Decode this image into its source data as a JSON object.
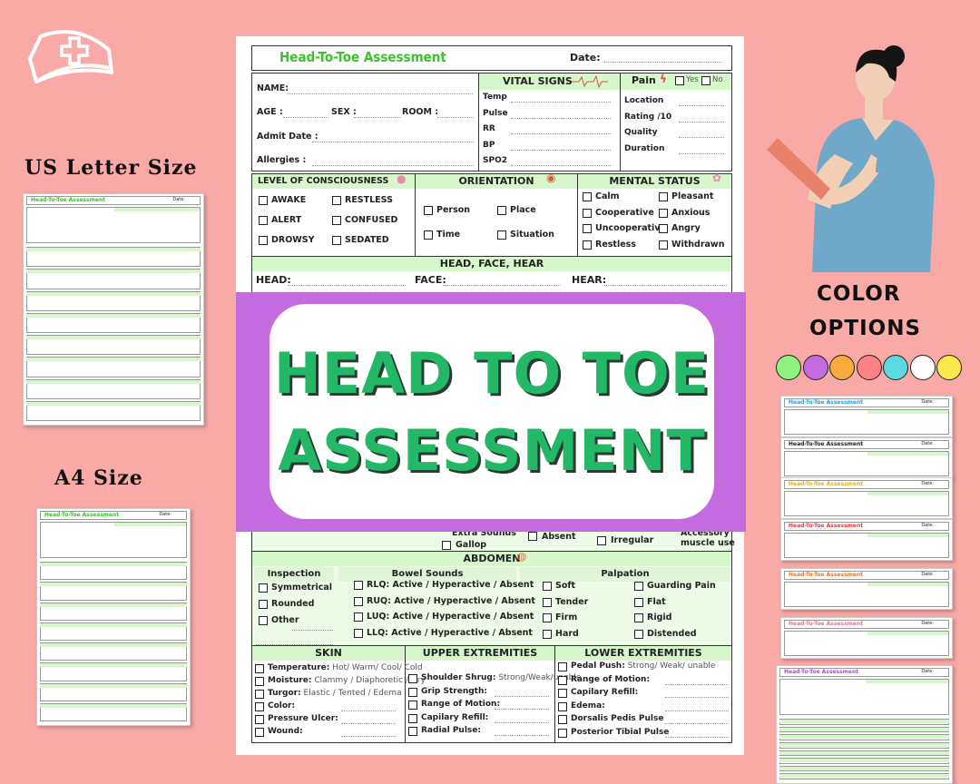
{
  "side": {
    "us_letter": "US Letter Size",
    "a4": "A4 Size",
    "color_options_1": "COLOR",
    "color_options_2": "OPTIONS"
  },
  "colors": [
    "#8ef27e",
    "#c46be0",
    "#f9ac3c",
    "#fb8383",
    "#5bd9e0",
    "#ffffff",
    "#fbe74b"
  ],
  "banner": {
    "line1": "HEAD TO TOE",
    "line2": "ASSESSMENT",
    "color": "#23b866",
    "bg": "#c46be0"
  },
  "form": {
    "title": "Head-To-Toe Assessment",
    "date": "Date:",
    "patient": {
      "name": "NAME:",
      "age": "AGE :",
      "sex": "SEX :",
      "room": "ROOM :",
      "admit": "Admit Date :",
      "allergies": "Allergies :"
    },
    "vitals": {
      "title": "VITAL SIGNS",
      "items": [
        "Temp",
        "Pulse",
        "RR",
        "BP",
        "SPO2"
      ]
    },
    "pain": {
      "title": "Pain",
      "yes": "Yes",
      "no": "No",
      "items": [
        "Location",
        "Rating /10",
        "Quality",
        "Duration"
      ]
    },
    "loc": {
      "title": "LEVEL OF CONSCIOUSNESS",
      "items": [
        "AWAKE",
        "RESTLESS",
        "ALERT",
        "CONFUSED",
        "DROWSY",
        "SEDATED"
      ]
    },
    "orientation": {
      "title": "ORIENTATION",
      "items": [
        "Person",
        "Place",
        "Time",
        "Situation"
      ]
    },
    "mental": {
      "title": "MENTAL STATUS",
      "items": [
        "Calm",
        "Pleasant",
        "Cooperative",
        "Anxious",
        "Uncooperative",
        "Angry",
        "Restless",
        "Withdrawn"
      ]
    },
    "hfh": {
      "title": "HEAD, FACE, HEAR",
      "head": "HEAD:",
      "face": "FACE:",
      "hear": "HEAR:"
    },
    "partial": {
      "extra": "Extra Sounds",
      "gallop": "Gallop",
      "absent": "Absent",
      "irregular": "Irregular",
      "accessory": "Accessory",
      "muscle": "muscle use"
    },
    "abdomen": {
      "title": "ABDOMEN",
      "inspection": {
        "title": "Inspection",
        "items": [
          "Symmetrical",
          "Rounded",
          "Other"
        ]
      },
      "bowel": {
        "title": "Bowel Sounds",
        "items": [
          "RLQ: Active / Hyperactive / Absent",
          "RUQ: Active / Hyperactive / Absent",
          "LUQ: Active / Hyperactive / Absent",
          "LLQ: Active / Hyperactive / Absent"
        ]
      },
      "palpation": {
        "title": "Palpation",
        "items": [
          "Soft",
          "Guarding Pain",
          "Tender",
          "Flat",
          "Firm",
          "Rigid",
          "Hard",
          "Distended"
        ]
      }
    },
    "skin": {
      "title": "SKIN",
      "items": [
        {
          "label": "Temperature:",
          "opts": "Hot/ Warm/ Cool/ Cold"
        },
        {
          "label": "Moisture:",
          "opts": "Clammy / Diaphoretic / Dry"
        },
        {
          "label": "Turgor:",
          "opts": "Elastic / Tented / Edema"
        },
        {
          "label": "Color:",
          "opts": ""
        },
        {
          "label": "Pressure Ulcer:",
          "opts": ""
        },
        {
          "label": "Wound:",
          "opts": ""
        }
      ]
    },
    "upper": {
      "title": "UPPER EXTREMITIES",
      "items": [
        {
          "label": "Shoulder Shrug:",
          "opts": "Strong/Weak/unable"
        },
        {
          "label": "Grip Strength:",
          "opts": ""
        },
        {
          "label": "Range of Motion:",
          "opts": ""
        },
        {
          "label": "Capilary Refill:",
          "opts": ""
        },
        {
          "label": "Radial Pulse:",
          "opts": ""
        }
      ]
    },
    "lower": {
      "title": "LOWER EXTREMITIES",
      "items": [
        {
          "label": "Pedal Push:",
          "opts": "Strong/ Weak/ unable"
        },
        {
          "label": "Range of Motion:",
          "opts": ""
        },
        {
          "label": "Capilary Refill:",
          "opts": ""
        },
        {
          "label": "Edema:",
          "opts": ""
        },
        {
          "label": "Dorsalis Pedis Pulse",
          "opts": ""
        },
        {
          "label": "Posterior Tibial Pulse",
          "opts": ""
        }
      ]
    }
  },
  "thumbs": {
    "title": "Head-To-Toe Assessment",
    "date": "Date:",
    "title_colors": [
      "#2e9be0",
      "#222222",
      "#e0b020",
      "#e04040",
      "#e07a20",
      "#e07a90",
      "#b04ad0"
    ]
  }
}
